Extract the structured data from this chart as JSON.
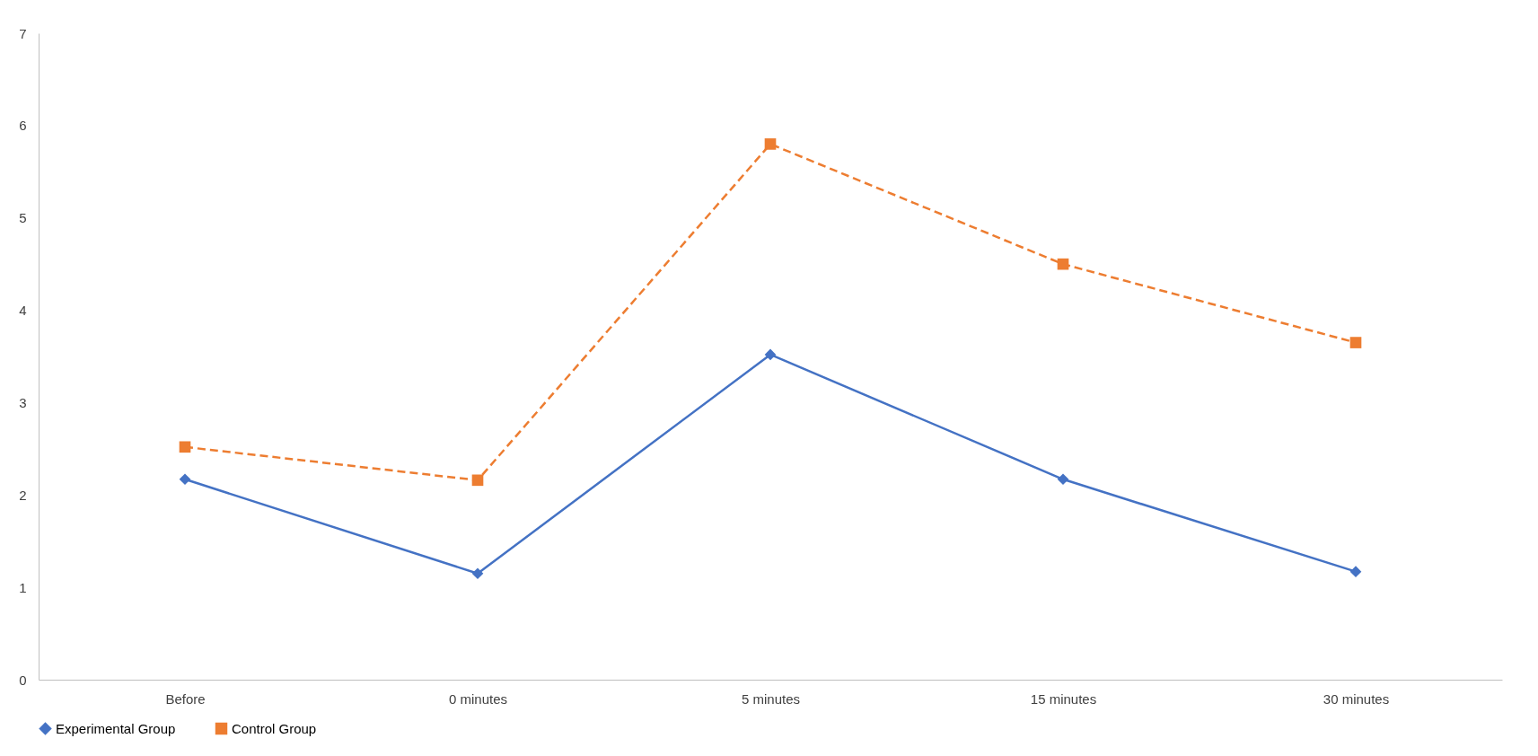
{
  "chart_data": {
    "type": "line",
    "categories": [
      "Before",
      "0 minutes",
      "5 minutes",
      "15 minutes",
      "30 minutes"
    ],
    "series": [
      {
        "name": "Experimental Group",
        "color": "#4472c4",
        "marker": "diamond",
        "line_style": "solid",
        "values": [
          2.17,
          1.15,
          3.52,
          2.17,
          1.17
        ]
      },
      {
        "name": "Control Group",
        "color": "#ed7d31",
        "marker": "square",
        "line_style": "dashed",
        "values": [
          2.52,
          2.16,
          5.8,
          4.5,
          3.65
        ]
      }
    ],
    "ylim": [
      0,
      7
    ],
    "yticks": [
      0,
      1,
      2,
      3,
      4,
      5,
      6,
      7
    ],
    "grid": false,
    "legend": "bottom"
  }
}
